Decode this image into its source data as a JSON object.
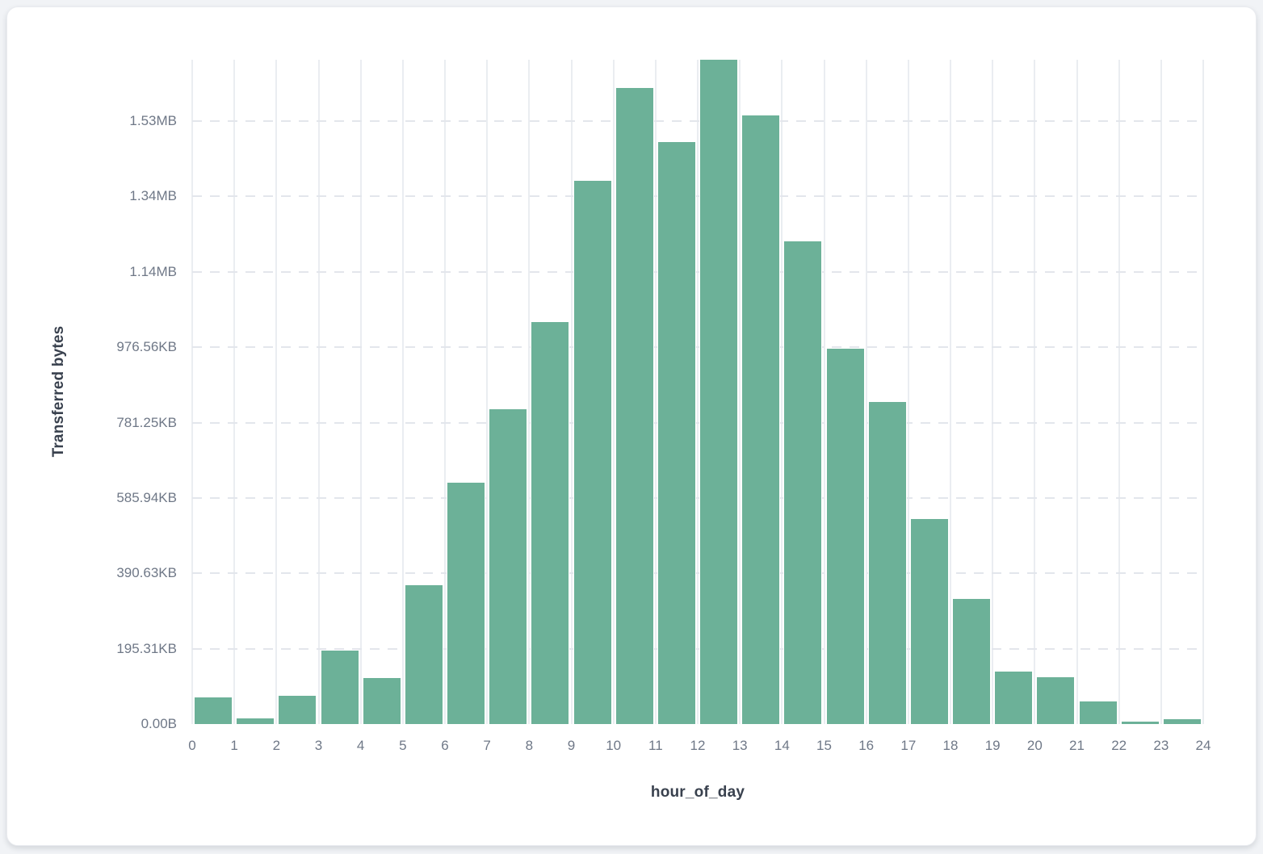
{
  "colors": {
    "page_background": "#f1f3f6",
    "card_background": "#ffffff",
    "bar_fill": "#6cb198",
    "bar_edge": "#ffffff",
    "vertical_grid": "#eaedf1",
    "horizontal_grid": "#e3e6ec",
    "tick_text": "#6f7887",
    "axis_title_text": "#39414e"
  },
  "chart_data": {
    "type": "bar",
    "title": "",
    "xlabel": "hour_of_day",
    "ylabel": "Transferred bytes",
    "grid": true,
    "legend": false,
    "categories": [
      0,
      1,
      2,
      3,
      4,
      5,
      6,
      7,
      8,
      9,
      10,
      11,
      12,
      13,
      14,
      15,
      16,
      17,
      18,
      19,
      20,
      21,
      22,
      23
    ],
    "values": [
      70000,
      14000,
      76000,
      196000,
      123000,
      369000,
      641000,
      836000,
      1067000,
      1442000,
      1688000,
      1544000,
      1763000,
      1615000,
      1281000,
      996000,
      855000,
      545000,
      333000,
      140000,
      125000,
      59000,
      6000,
      13000
    ],
    "values_unit": "bytes",
    "xlim": [
      0,
      24
    ],
    "ylim": [
      0,
      1763000
    ],
    "x_tick_labels": [
      "0",
      "1",
      "2",
      "3",
      "4",
      "5",
      "6",
      "7",
      "8",
      "9",
      "10",
      "11",
      "12",
      "13",
      "14",
      "15",
      "16",
      "17",
      "18",
      "19",
      "20",
      "21",
      "22",
      "23",
      "24"
    ],
    "y_ticks": [
      {
        "value": 0,
        "label": "0.00B"
      },
      {
        "value": 200000,
        "label": "195.31KB"
      },
      {
        "value": 400000,
        "label": "390.63KB"
      },
      {
        "value": 600000,
        "label": "585.94KB"
      },
      {
        "value": 800000,
        "label": "781.25KB"
      },
      {
        "value": 1000000,
        "label": "976.56KB"
      },
      {
        "value": 1200000,
        "label": "1.14MB"
      },
      {
        "value": 1400000,
        "label": "1.34MB"
      },
      {
        "value": 1600000,
        "label": "1.53MB"
      }
    ]
  }
}
